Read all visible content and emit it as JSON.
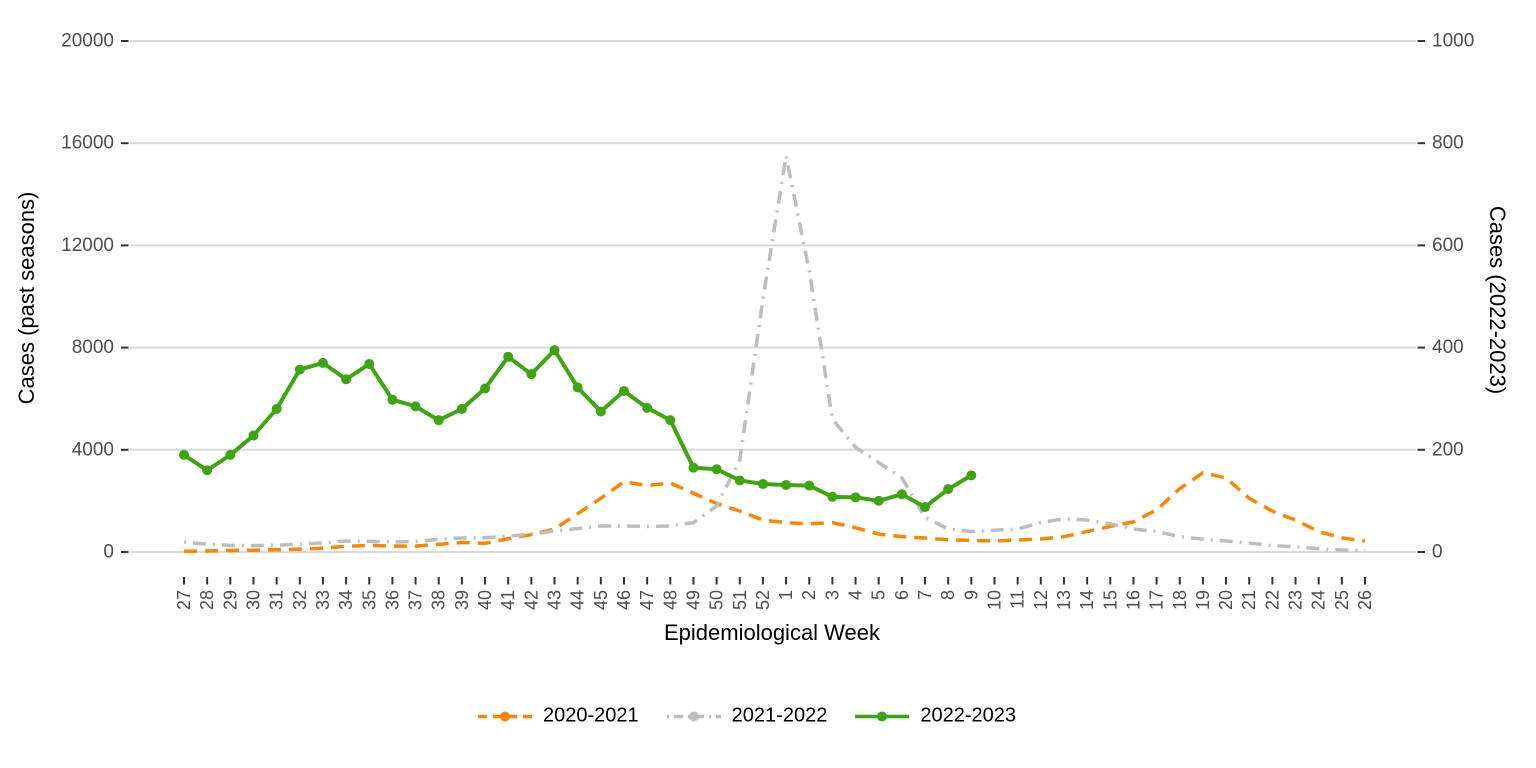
{
  "chart_data": {
    "type": "line",
    "xlabel": "Epidemiological Week",
    "ylabel_left": "Cases (past seasons)",
    "ylabel_right": "Cases (2022-2023)",
    "grid": true,
    "legend_position": "bottom",
    "colors": {
      "grid": "#d9d9d9",
      "axis_text": "#4d4d4d",
      "tick_mark": "#333333",
      "title_text": "#000000"
    },
    "left_axis": {
      "ticks": [
        0,
        4000,
        8000,
        12000,
        16000,
        20000
      ],
      "range": [
        0,
        20000
      ]
    },
    "right_axis": {
      "ticks": [
        0,
        200,
        400,
        600,
        800,
        1000
      ],
      "range": [
        0,
        1000
      ]
    },
    "x_categories": [
      "27",
      "28",
      "29",
      "30",
      "31",
      "32",
      "33",
      "34",
      "35",
      "36",
      "37",
      "38",
      "39",
      "40",
      "41",
      "42",
      "43",
      "44",
      "45",
      "46",
      "47",
      "48",
      "49",
      "50",
      "51",
      "52",
      "1",
      "2",
      "3",
      "4",
      "5",
      "6",
      "7",
      "8",
      "9",
      "10",
      "11",
      "12",
      "13",
      "14",
      "15",
      "16",
      "17",
      "18",
      "19",
      "20",
      "21",
      "22",
      "23",
      "24",
      "25",
      "26"
    ],
    "series": [
      {
        "name": "2020-2021",
        "axis": "left",
        "color": "#f8850c",
        "linestyle": "dashed",
        "marker": false,
        "values": [
          30,
          40,
          60,
          70,
          90,
          110,
          150,
          220,
          260,
          230,
          230,
          300,
          370,
          340,
          520,
          680,
          900,
          1500,
          2100,
          2750,
          2600,
          2700,
          2300,
          1900,
          1600,
          1250,
          1150,
          1100,
          1150,
          950,
          700,
          600,
          550,
          480,
          450,
          430,
          470,
          510,
          600,
          800,
          1000,
          1180,
          1650,
          2480,
          3100,
          2900,
          2100,
          1600,
          1250,
          800,
          550,
          430
        ]
      },
      {
        "name": "2021-2022",
        "axis": "left",
        "color": "#bdbdbd",
        "linestyle": "dashdot",
        "marker": false,
        "values": [
          390,
          310,
          260,
          250,
          270,
          310,
          360,
          430,
          420,
          390,
          410,
          500,
          550,
          560,
          620,
          700,
          820,
          920,
          1020,
          1020,
          1000,
          1020,
          1150,
          1800,
          3600,
          9900,
          15500,
          11000,
          5200,
          4100,
          3500,
          2900,
          1350,
          900,
          800,
          850,
          900,
          1150,
          1300,
          1250,
          1100,
          900,
          800,
          600,
          500,
          430,
          350,
          250,
          200,
          130,
          80,
          50
        ]
      },
      {
        "name": "2022-2023",
        "axis": "right",
        "color": "#3fa315",
        "linestyle": "solid",
        "marker": true,
        "values": [
          190,
          160,
          190,
          228,
          280,
          357,
          370,
          338,
          368,
          298,
          285,
          258,
          280,
          320,
          382,
          348,
          395,
          322,
          275,
          315,
          282,
          258,
          165,
          162,
          140,
          133,
          131,
          130,
          108,
          107,
          100,
          113,
          88,
          123,
          150,
          null,
          null,
          null,
          null,
          null,
          null,
          null,
          null,
          null,
          null,
          null,
          null,
          null,
          null,
          null,
          null,
          null
        ]
      }
    ]
  }
}
